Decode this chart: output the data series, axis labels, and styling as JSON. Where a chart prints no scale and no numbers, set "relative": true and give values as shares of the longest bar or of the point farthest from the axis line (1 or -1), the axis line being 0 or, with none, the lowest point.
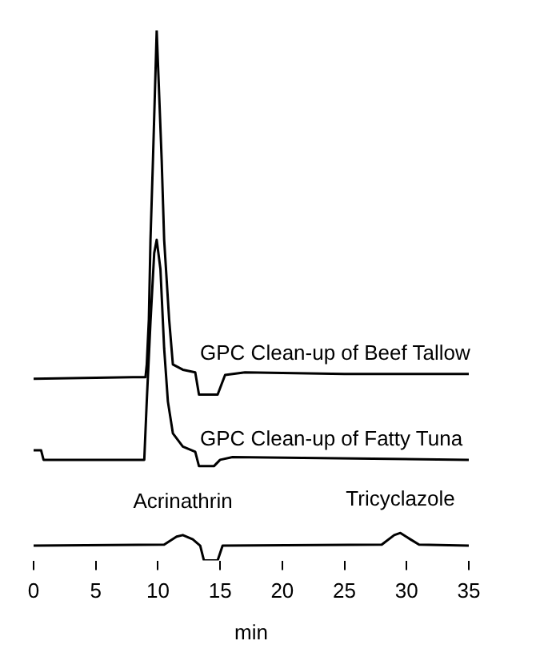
{
  "chart_data": {
    "type": "line",
    "relative": true,
    "xlabel": "min",
    "xlim": [
      0,
      35
    ],
    "xticks": [
      0,
      5,
      10,
      15,
      20,
      25,
      30,
      35
    ],
    "grid": false,
    "legend": false,
    "marker": "none",
    "line_style": "solid",
    "tick_labels": "x",
    "series": [
      {
        "name": "GPC Clean-up of Beef Tallow",
        "color": "#000000",
        "x": [
          0,
          8,
          9,
          9.1,
          9.27,
          9.4,
          9.6,
          9.9,
          10.3,
          10.5,
          10.9,
          11.2,
          12,
          13,
          13.3,
          14.8,
          15.4,
          17,
          25,
          35
        ],
        "values": [
          0.343,
          0.346,
          0.346,
          0.37,
          0.455,
          0.605,
          0.756,
          1,
          0.756,
          0.605,
          0.455,
          0.37,
          0.36,
          0.355,
          0.313,
          0.313,
          0.35,
          0.355,
          0.352,
          0.352
        ]
      },
      {
        "name": "GPC Clean-up of Fatty Tuna",
        "color": "#000000",
        "x": [
          0,
          0.6,
          0.8,
          8.9,
          9.1,
          9.4,
          9.7,
          9.9,
          10.2,
          10.5,
          10.8,
          11.2,
          12,
          13,
          13.3,
          14.5,
          15,
          16,
          35
        ],
        "values": [
          0.208,
          0.208,
          0.19,
          0.19,
          0.3,
          0.45,
          0.58,
          0.605,
          0.55,
          0.4,
          0.3,
          0.24,
          0.215,
          0.205,
          0.178,
          0.178,
          0.19,
          0.195,
          0.19
        ]
      },
      {
        "color": "#000000",
        "x": [
          0,
          10.5,
          11.5,
          12,
          12.8,
          13.4,
          13.7,
          14.8,
          15.2,
          28,
          29,
          29.5,
          30.3,
          31,
          35
        ],
        "values": [
          0.028,
          0.03,
          0.045,
          0.048,
          0.04,
          0.028,
          0,
          0,
          0.028,
          0.03,
          0.048,
          0.052,
          0.04,
          0.03,
          0.028
        ]
      }
    ],
    "annotations": [
      {
        "text": "Acrinathrin",
        "x": 12,
        "y": 0.048
      },
      {
        "text": "Tricyclazole",
        "x": 29.5,
        "y": 0.052
      }
    ]
  }
}
